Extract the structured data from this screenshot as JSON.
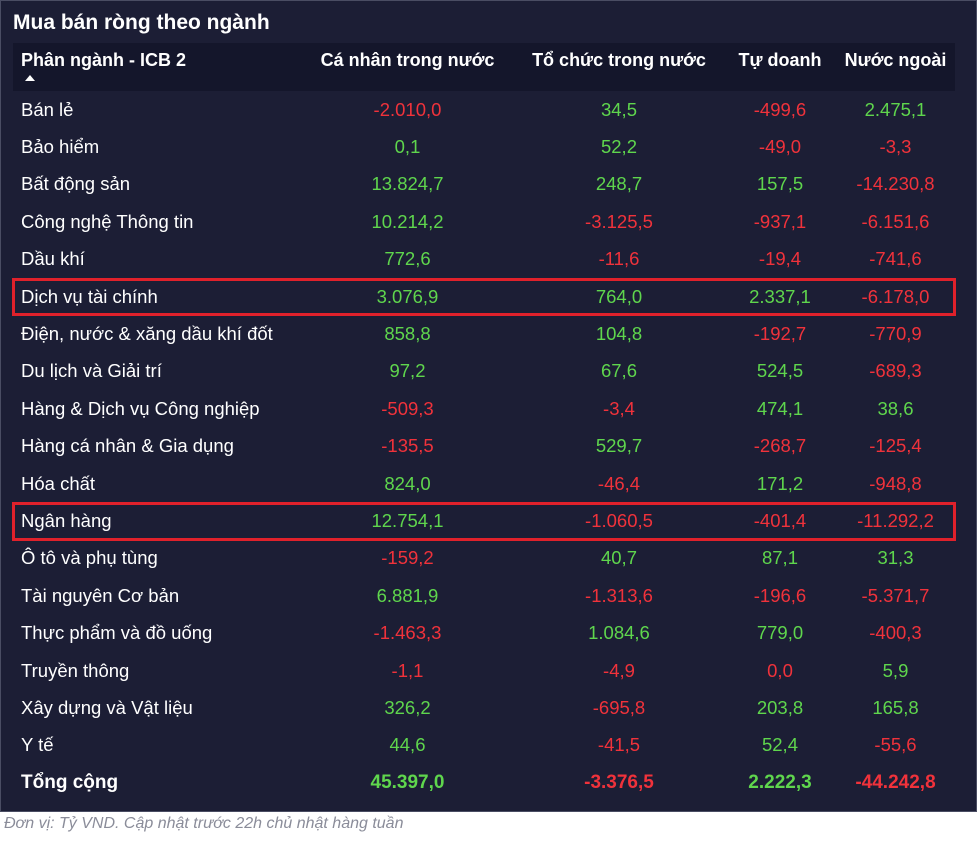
{
  "title": "Mua bán ròng theo ngành",
  "footnote": "Đơn vị: Tỷ VND. Cập nhật trước 22h chủ nhật hàng tuần",
  "colors": {
    "positive": "#5fd64d",
    "negative": "#f0323b",
    "background": "#1c1e35",
    "header_bg": "#14162b",
    "highlight": "#e0212b"
  },
  "highlighted_rows": [
    "Dịch vụ tài chính",
    "Ngân hàng"
  ],
  "chart_data": {
    "type": "table",
    "columns": [
      "Phân ngành - ICB 2",
      "Cá nhân trong nước",
      "Tổ chức trong nước",
      "Tự doanh",
      "Nước ngoài"
    ],
    "rows": [
      {
        "sector": "Bán lẻ",
        "values": [
          "-2.010,0",
          "34,5",
          "-499,6",
          "2.475,1"
        ]
      },
      {
        "sector": "Bảo hiểm",
        "values": [
          "0,1",
          "52,2",
          "-49,0",
          "-3,3"
        ]
      },
      {
        "sector": "Bất động sản",
        "values": [
          "13.824,7",
          "248,7",
          "157,5",
          "-14.230,8"
        ]
      },
      {
        "sector": "Công nghệ Thông tin",
        "values": [
          "10.214,2",
          "-3.125,5",
          "-937,1",
          "-6.151,6"
        ]
      },
      {
        "sector": "Dầu khí",
        "values": [
          "772,6",
          "-11,6",
          "-19,4",
          "-741,6"
        ]
      },
      {
        "sector": "Dịch vụ tài chính",
        "values": [
          "3.076,9",
          "764,0",
          "2.337,1",
          "-6.178,0"
        ]
      },
      {
        "sector": "Điện, nước & xăng dầu khí đốt",
        "values": [
          "858,8",
          "104,8",
          "-192,7",
          "-770,9"
        ]
      },
      {
        "sector": "Du lịch và Giải trí",
        "values": [
          "97,2",
          "67,6",
          "524,5",
          "-689,3"
        ]
      },
      {
        "sector": "Hàng & Dịch vụ Công nghiệp",
        "values": [
          "-509,3",
          "-3,4",
          "474,1",
          "38,6"
        ]
      },
      {
        "sector": "Hàng cá nhân & Gia dụng",
        "values": [
          "-135,5",
          "529,7",
          "-268,7",
          "-125,4"
        ]
      },
      {
        "sector": "Hóa chất",
        "values": [
          "824,0",
          "-46,4",
          "171,2",
          "-948,8"
        ]
      },
      {
        "sector": "Ngân hàng",
        "values": [
          "12.754,1",
          "-1.060,5",
          "-401,4",
          "-11.292,2"
        ]
      },
      {
        "sector": "Ô tô và phụ tùng",
        "values": [
          "-159,2",
          "40,7",
          "87,1",
          "31,3"
        ]
      },
      {
        "sector": "Tài nguyên Cơ bản",
        "values": [
          "6.881,9",
          "-1.313,6",
          "-196,6",
          "-5.371,7"
        ]
      },
      {
        "sector": "Thực phẩm và đồ uống",
        "values": [
          "-1.463,3",
          "1.084,6",
          "779,0",
          "-400,3"
        ]
      },
      {
        "sector": "Truyền thông",
        "values": [
          "-1,1",
          "-4,9",
          "0,0",
          "5,9"
        ]
      },
      {
        "sector": "Xây dựng và Vật liệu",
        "values": [
          "326,2",
          "-695,8",
          "203,8",
          "165,8"
        ]
      },
      {
        "sector": "Y tế",
        "values": [
          "44,6",
          "-41,5",
          "52,4",
          "-55,6"
        ]
      }
    ],
    "total": {
      "sector": "Tổng cộng",
      "values": [
        "45.397,0",
        "-3.376,5",
        "2.222,3",
        "-44.242,8"
      ]
    }
  }
}
